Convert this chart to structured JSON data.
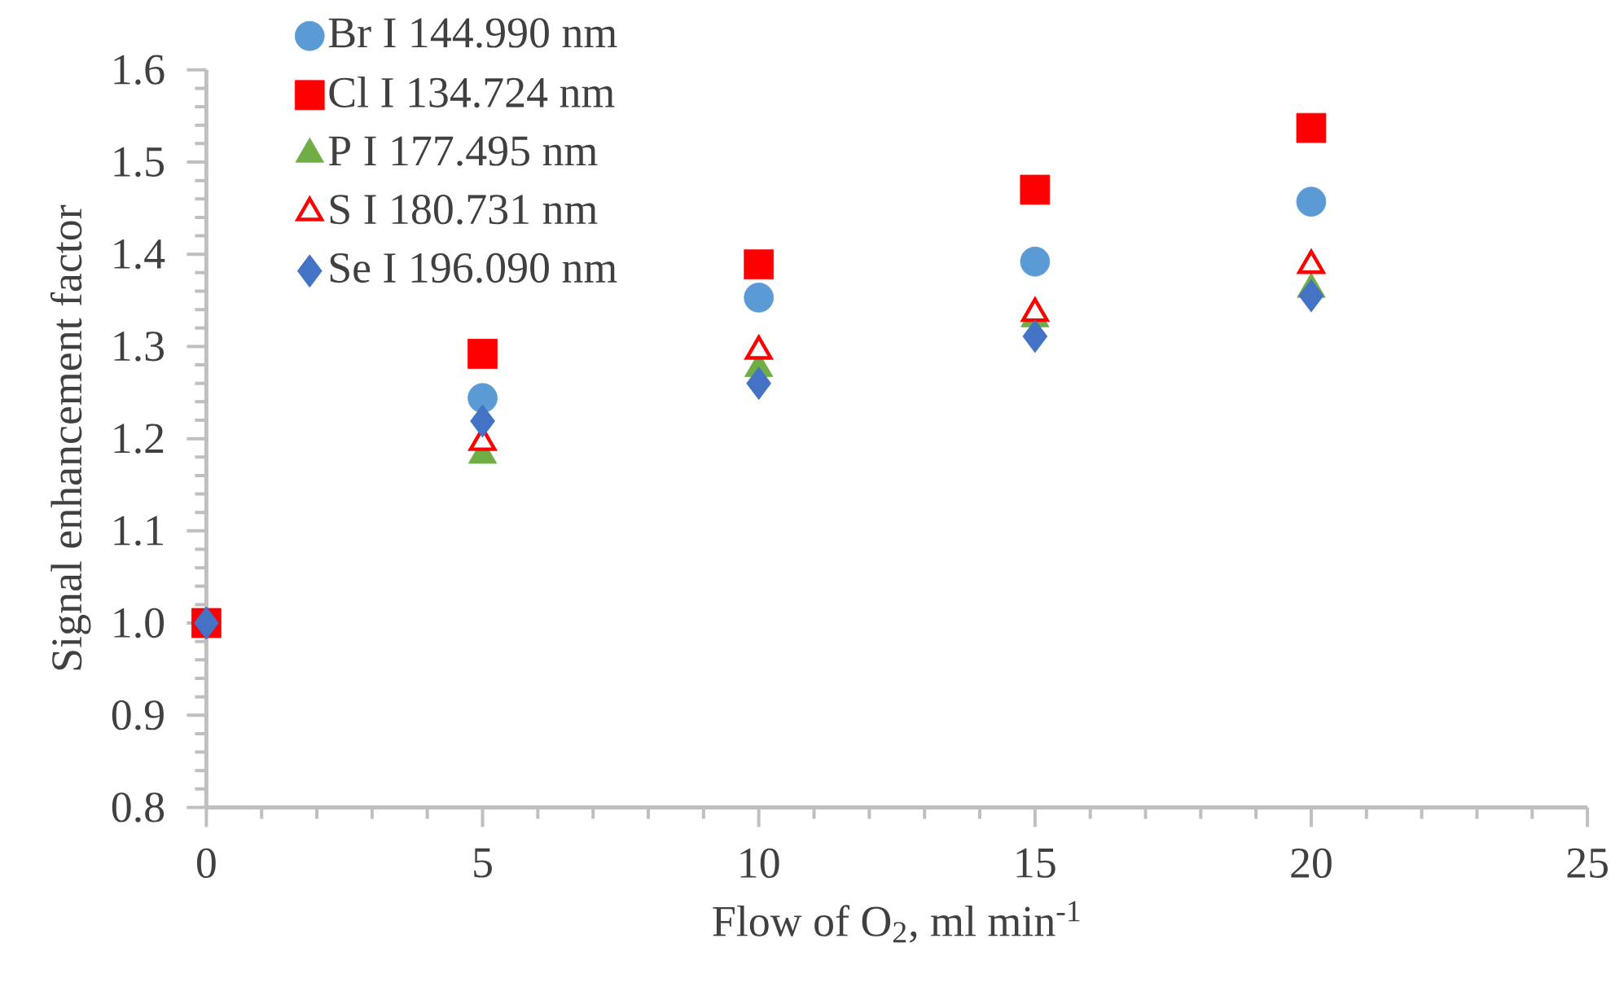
{
  "chart_data": {
    "type": "scatter",
    "xlabel": "Flow of O$_{2}$, ml min$^{-1}$",
    "ylabel": "Signal enhancement factor",
    "x": [
      0,
      5,
      10,
      15,
      20
    ],
    "series": [
      {
        "name": "Br I 144.990 nm",
        "color": "#5b9bd5",
        "marker": "circle",
        "values": [
          null,
          1.244,
          1.353,
          1.392,
          1.457
        ]
      },
      {
        "name": "Cl I 134.724 nm",
        "color": "#ff0000",
        "marker": "square",
        "values": [
          1.0,
          1.292,
          1.389,
          1.47,
          1.537
        ]
      },
      {
        "name": "P I 177.495 nm",
        "color": "#70ad47",
        "marker": "triangle",
        "values": [
          null,
          1.182,
          1.276,
          1.33,
          1.362
        ]
      },
      {
        "name": "S I 180.731 nm",
        "color": "#ff0000",
        "marker": "triangle",
        "values": [
          null,
          1.196,
          1.295,
          1.336,
          1.388
        ]
      },
      {
        "name": "Se I 196.090 nm",
        "color": "#4472c4",
        "marker": "diamond",
        "values": [
          1.0,
          1.219,
          1.26,
          1.311,
          1.355
        ]
      }
    ],
    "xlim": [
      0,
      25
    ],
    "xticks": [
      0,
      5,
      10,
      15,
      20,
      25
    ],
    "ylim": [
      0.8,
      1.6
    ],
    "yticks": [
      {
        "value": 0.8,
        "label": "0.8"
      },
      {
        "value": 0.9,
        "label": "0.9"
      },
      {
        "value": 1.0,
        "label": "1.0"
      },
      {
        "value": 1.1,
        "label": "1.1"
      },
      {
        "value": 1.2,
        "label": "1.2"
      },
      {
        "value": 1.3,
        "label": "1.3"
      },
      {
        "value": 1.4,
        "label": "1.4"
      },
      {
        "value": 1.5,
        "label": "1.5"
      },
      {
        "value": 1.6,
        "label": "1.6"
      }
    ],
    "grid": false,
    "legend": "top left"
  }
}
